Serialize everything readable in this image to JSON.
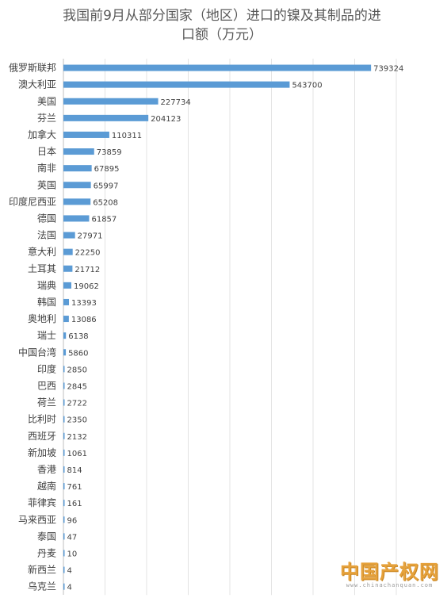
{
  "chart_data": {
    "type": "bar",
    "orientation": "horizontal",
    "title_lines": [
      "我国前9月从部分国家（地区）进口的镍及其制品的进",
      "口额（万元）"
    ],
    "categories": [
      "俄罗斯联邦",
      "澳大利亚",
      "美国",
      "芬兰",
      "加拿大",
      "日本",
      "南非",
      "英国",
      "印度尼西亚",
      "德国",
      "法国",
      "意大利",
      "土耳其",
      "瑞典",
      "韩国",
      "奥地利",
      "瑞士",
      "中国台湾",
      "印度",
      "巴西",
      "荷兰",
      "比利时",
      "西班牙",
      "新加坡",
      "香港",
      "越南",
      "菲律宾",
      "马来西亚",
      "泰国",
      "丹麦",
      "新西兰",
      "乌克兰"
    ],
    "values": [
      739324,
      543700,
      227734,
      204123,
      110311,
      73859,
      67895,
      65997,
      65208,
      61857,
      27971,
      22250,
      21712,
      19062,
      13393,
      13086,
      6138,
      5860,
      2850,
      2845,
      2722,
      2350,
      2132,
      1061,
      814,
      761,
      161,
      96,
      47,
      10,
      4,
      4
    ],
    "xlim": [
      0,
      800000
    ],
    "grid": true,
    "bar_color": "#5b9bd5"
  },
  "watermark": {
    "main": "中国产权网",
    "sub": "www.chinachanquan.com"
  }
}
